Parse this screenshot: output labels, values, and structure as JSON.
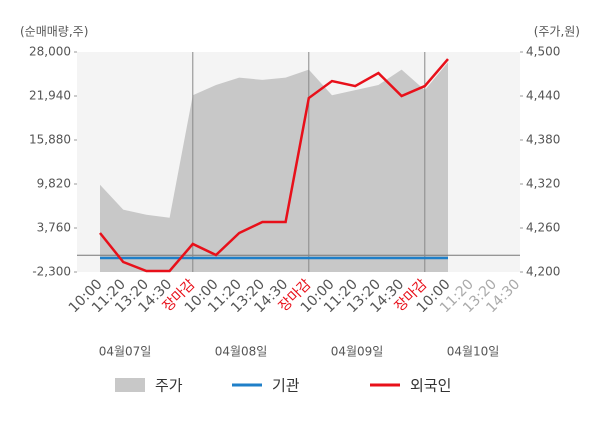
{
  "chart_data": {
    "type": "line",
    "y_label": "(순매매량,주)",
    "y2_label": "(주가,원)",
    "categories": [
      "10:00",
      "11:20",
      "13:20",
      "14:30",
      "장마감",
      "10:00",
      "11:20",
      "13:20",
      "14:30",
      "장마감",
      "10:00",
      "11:20",
      "13:20",
      "14:30",
      "장마감",
      "10:00",
      "11:20",
      "13:20",
      "14:30"
    ],
    "dates": [
      "04월07일",
      "04월08일",
      "04월09일",
      "04월10일"
    ],
    "ylim": [
      -2300,
      28000
    ],
    "yticks": [
      {
        "value": -2300,
        "label": "-2,300"
      },
      {
        "value": 3760,
        "label": "3,760"
      },
      {
        "value": 9820,
        "label": "9,820"
      },
      {
        "value": 15880,
        "label": "15,880"
      },
      {
        "value": 21940,
        "label": "21,940"
      },
      {
        "value": 28000,
        "label": "28,000"
      }
    ],
    "y2lim": [
      4200,
      4500
    ],
    "y2ticks": [
      {
        "value": 4200,
        "label": "4,200"
      },
      {
        "value": 4260,
        "label": "4,260"
      },
      {
        "value": 4320,
        "label": "4,320"
      },
      {
        "value": 4380,
        "label": "4,380"
      },
      {
        "value": 4440,
        "label": "4,440"
      },
      {
        "value": 4500,
        "label": "4,500"
      }
    ],
    "series": [
      {
        "name": "주가",
        "color": "#c8c8c8",
        "style": "area",
        "axis": "y2",
        "values": [
          4319,
          4285,
          4278,
          4274,
          4441,
          4455,
          4465,
          4462,
          4465,
          4476,
          4441,
          4448,
          4455,
          4476,
          4448,
          4486,
          null,
          null,
          null
        ]
      },
      {
        "name": "기관",
        "color": "#1f7fc8",
        "values": [
          -370,
          -370,
          -370,
          -370,
          -370,
          -370,
          -370,
          -370,
          -370,
          -370,
          -370,
          -370,
          -370,
          -370,
          -370,
          -370,
          null,
          null,
          null
        ]
      },
      {
        "name": "외국인",
        "color": "#e8101a",
        "values": [
          3070,
          -920,
          -2160,
          -2160,
          1560,
          40,
          3070,
          4590,
          4590,
          21660,
          24000,
          23310,
          25100,
          21940,
          23310,
          27030,
          null,
          null,
          null
        ]
      }
    ]
  }
}
